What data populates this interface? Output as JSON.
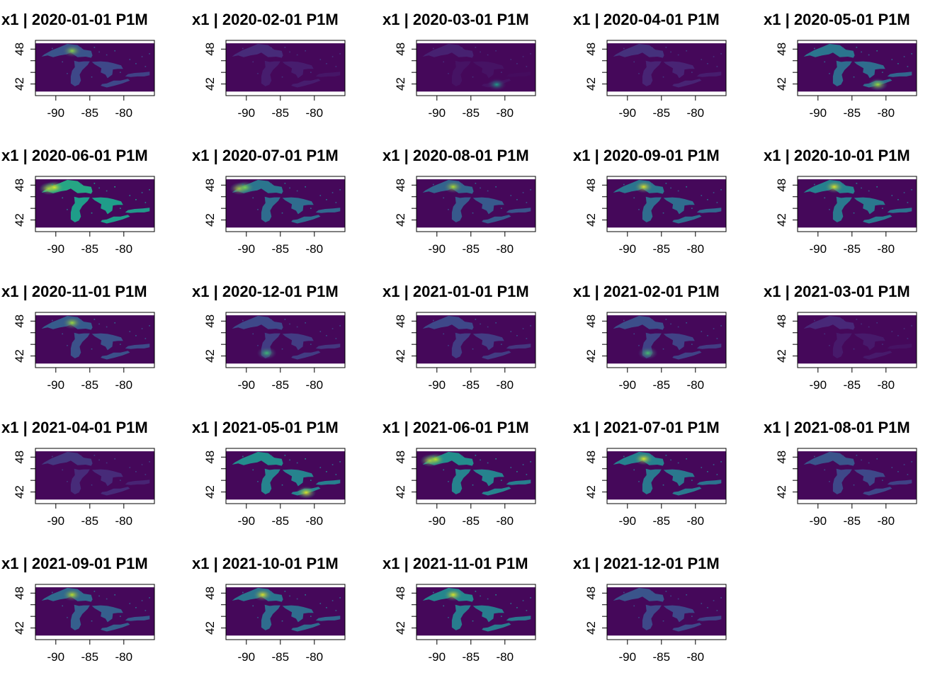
{
  "chart_data": {
    "type": "heatmap",
    "layout": "small multiples, 5 columns x 5 rows",
    "variable": "x1",
    "colormap": "viridis",
    "value_scale": "relative intensity 0-1 over lake surfaces",
    "xlim": [
      -93,
      -75.5
    ],
    "ylim": [
      40,
      49.5
    ],
    "x_ticks": [
      -90,
      -85,
      -80
    ],
    "x_tick_labels": [
      "-90",
      "-85",
      "-80"
    ],
    "y_ticks": [
      42,
      48
    ],
    "y_tick_labels": [
      "42",
      "48"
    ],
    "panels": [
      {
        "title": "x1 | 2020-01-01 P1M",
        "level": 0.22,
        "hotspot": "superior-center"
      },
      {
        "title": "x1 | 2020-02-01 P1M",
        "level": 0.08,
        "hotspot": "none"
      },
      {
        "title": "x1 | 2020-03-01 P1M",
        "level": 0.05,
        "hotspot": "erie"
      },
      {
        "title": "x1 | 2020-04-01 P1M",
        "level": 0.1,
        "hotspot": "none"
      },
      {
        "title": "x1 | 2020-05-01 P1M",
        "level": 0.35,
        "hotspot": "erie"
      },
      {
        "title": "x1 | 2020-06-01 P1M",
        "level": 0.55,
        "hotspot": "superior-west"
      },
      {
        "title": "x1 | 2020-07-01 P1M",
        "level": 0.35,
        "hotspot": "superior-west"
      },
      {
        "title": "x1 | 2020-08-01 P1M",
        "level": 0.28,
        "hotspot": "superior-center"
      },
      {
        "title": "x1 | 2020-09-01 P1M",
        "level": 0.35,
        "hotspot": "superior-center"
      },
      {
        "title": "x1 | 2020-10-01 P1M",
        "level": 0.4,
        "hotspot": "superior-center"
      },
      {
        "title": "x1 | 2020-11-01 P1M",
        "level": 0.25,
        "hotspot": "superior-center"
      },
      {
        "title": "x1 | 2020-12-01 P1M",
        "level": 0.18,
        "hotspot": "michigan"
      },
      {
        "title": "x1 | 2021-01-01 P1M",
        "level": 0.18,
        "hotspot": "none"
      },
      {
        "title": "x1 | 2021-02-01 P1M",
        "level": 0.2,
        "hotspot": "michigan"
      },
      {
        "title": "x1 | 2021-03-01 P1M",
        "level": 0.07,
        "hotspot": "none"
      },
      {
        "title": "x1 | 2021-04-01 P1M",
        "level": 0.12,
        "hotspot": "none"
      },
      {
        "title": "x1 | 2021-05-01 P1M",
        "level": 0.45,
        "hotspot": "erie"
      },
      {
        "title": "x1 | 2021-06-01 P1M",
        "level": 0.45,
        "hotspot": "superior-west"
      },
      {
        "title": "x1 | 2021-07-01 P1M",
        "level": 0.4,
        "hotspot": "superior-center"
      },
      {
        "title": "x1 | 2021-08-01 P1M",
        "level": 0.22,
        "hotspot": "none"
      },
      {
        "title": "x1 | 2021-09-01 P1M",
        "level": 0.3,
        "hotspot": "superior-center"
      },
      {
        "title": "x1 | 2021-10-01 P1M",
        "level": 0.35,
        "hotspot": "superior-center"
      },
      {
        "title": "x1 | 2021-11-01 P1M",
        "level": 0.42,
        "hotspot": "superior-center"
      },
      {
        "title": "x1 | 2021-12-01 P1M",
        "level": 0.22,
        "hotspot": "none"
      }
    ]
  }
}
